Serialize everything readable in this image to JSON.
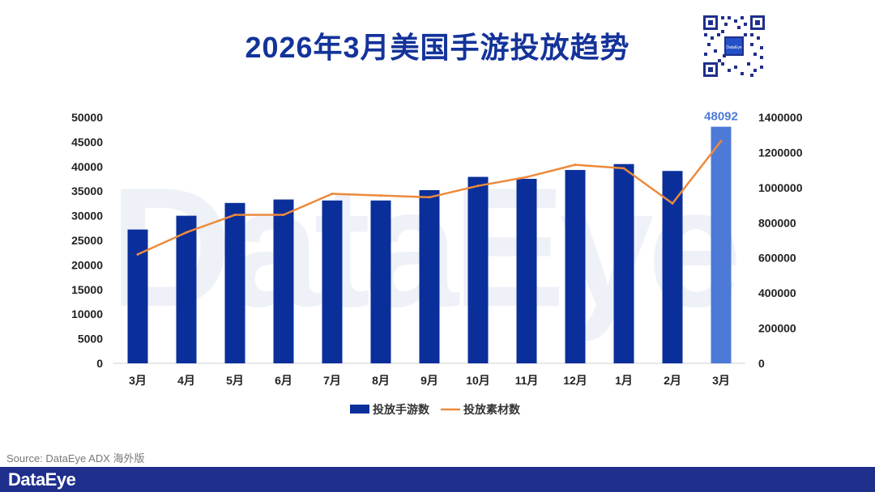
{
  "title": "2026年3月美国手游投放趋势",
  "watermark_text": "DataEye",
  "qr_center_text": "DataEye",
  "source": "Source: DataEye ADX 海外版",
  "footer_logo": "DataEye",
  "colors": {
    "bar": "#0a2f9b",
    "bar_highlight": "#4d7ad6",
    "line": "#ec8a3c",
    "title": "#14339a",
    "footer": "#1f2f8c"
  },
  "chart_data": {
    "type": "bar",
    "categories": [
      "3月",
      "4月",
      "5月",
      "6月",
      "7月",
      "8月",
      "9月",
      "10月",
      "11月",
      "12月",
      "1月",
      "2月",
      "3月"
    ],
    "series": [
      {
        "name": "投放手游数",
        "type": "bar",
        "axis": "left",
        "values": [
          27200,
          30000,
          32600,
          33300,
          33100,
          33100,
          35200,
          37900,
          37500,
          39300,
          40500,
          39100,
          48092
        ]
      },
      {
        "name": "投放素材数",
        "type": "line",
        "axis": "right",
        "values": [
          620000,
          745000,
          845000,
          845000,
          965000,
          955000,
          945000,
          1010000,
          1060000,
          1130000,
          1110000,
          910000,
          1265000
        ]
      }
    ],
    "highlight_index": 12,
    "data_labels": [
      {
        "index": 12,
        "text": "48092"
      }
    ],
    "y_left": {
      "ylim": [
        0,
        50000
      ],
      "ticks": [
        "0",
        "5000",
        "10000",
        "15000",
        "20000",
        "25000",
        "30000",
        "35000",
        "40000",
        "45000",
        "50000"
      ]
    },
    "y_right": {
      "ylim": [
        0,
        1400000
      ],
      "ticks": [
        "0",
        "200000",
        "400000",
        "600000",
        "800000",
        "1000000",
        "1200000",
        "1400000"
      ]
    },
    "grid": false,
    "legend_position": "bottom"
  }
}
